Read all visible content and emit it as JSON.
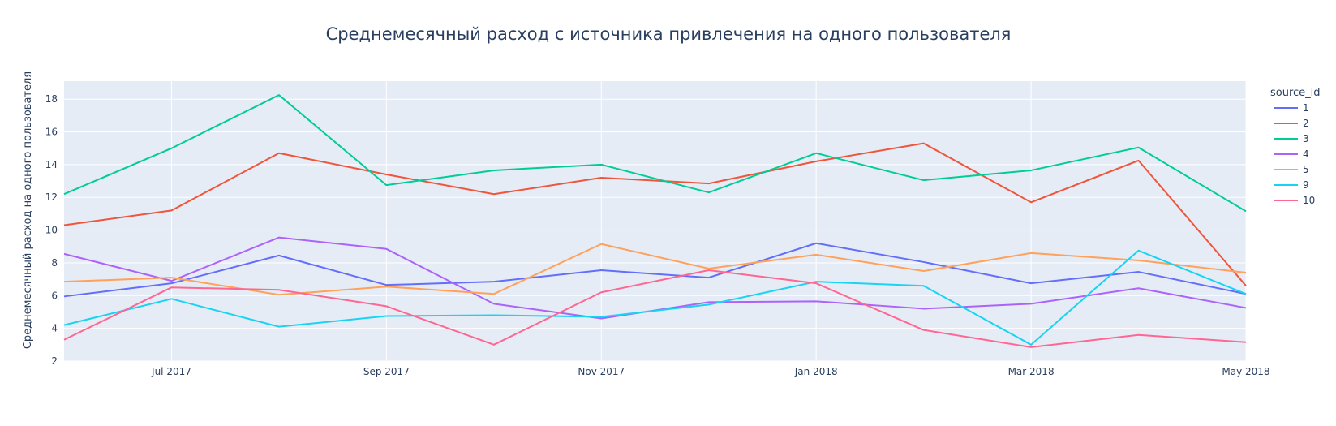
{
  "chart_data": {
    "type": "line",
    "title": "Среднемесячный расход с источника привлечения на одного пользователя",
    "xlabel": "",
    "ylabel": "Среднемесячный расход на одного пользователя",
    "x": [
      "2017-06",
      "2017-07",
      "2017-08",
      "2017-09",
      "2017-10",
      "2017-11",
      "2017-12",
      "2018-01",
      "2018-02",
      "2018-03",
      "2018-04",
      "2018-05"
    ],
    "x_tick_values": [
      "2017-07",
      "2017-09",
      "2017-11",
      "2018-01",
      "2018-03",
      "2018-05"
    ],
    "x_tick_labels": [
      "Jul 2017",
      "Sep 2017",
      "Nov 2017",
      "Jan 2018",
      "Mar 2018",
      "May 2018"
    ],
    "ylim": [
      2,
      19.1
    ],
    "y_ticks": [
      2,
      4,
      6,
      8,
      10,
      12,
      14,
      16,
      18
    ],
    "grid": true,
    "legend": {
      "title": "source_id",
      "placement": "right"
    },
    "series": [
      {
        "name": "1",
        "color": "#636efa",
        "values": [
          5.95,
          6.75,
          8.45,
          6.65,
          6.85,
          7.55,
          7.1,
          9.2,
          8.05,
          6.75,
          7.45,
          6.1
        ]
      },
      {
        "name": "2",
        "color": "#ef553b",
        "values": [
          10.3,
          11.2,
          14.7,
          13.4,
          12.2,
          13.2,
          12.85,
          14.2,
          15.3,
          11.7,
          14.25,
          6.6
        ]
      },
      {
        "name": "3",
        "color": "#00cc96",
        "values": [
          12.2,
          15.0,
          18.25,
          12.75,
          13.65,
          14.0,
          12.3,
          14.7,
          13.05,
          13.65,
          15.05,
          11.15
        ]
      },
      {
        "name": "4",
        "color": "#ab63fa",
        "values": [
          8.55,
          6.9,
          9.55,
          8.85,
          5.5,
          4.6,
          5.6,
          5.65,
          5.2,
          5.5,
          6.45,
          5.25
        ]
      },
      {
        "name": "5",
        "color": "#ffa15a",
        "values": [
          6.85,
          7.1,
          6.05,
          6.55,
          6.1,
          9.15,
          7.65,
          8.5,
          7.5,
          8.6,
          8.15,
          7.4
        ]
      },
      {
        "name": "9",
        "color": "#19d3f3",
        "values": [
          4.2,
          5.8,
          4.1,
          4.75,
          4.8,
          4.7,
          5.45,
          6.85,
          6.6,
          3.0,
          8.75,
          6.1
        ]
      },
      {
        "name": "10",
        "color": "#ff6692",
        "values": [
          3.3,
          6.5,
          6.35,
          5.35,
          3.0,
          6.2,
          7.55,
          6.75,
          3.9,
          2.85,
          3.6,
          3.15
        ]
      }
    ],
    "colors": {
      "plot_background": "#e5ecf6",
      "grid": "#ffffff",
      "text": "#2a3f5f"
    }
  }
}
